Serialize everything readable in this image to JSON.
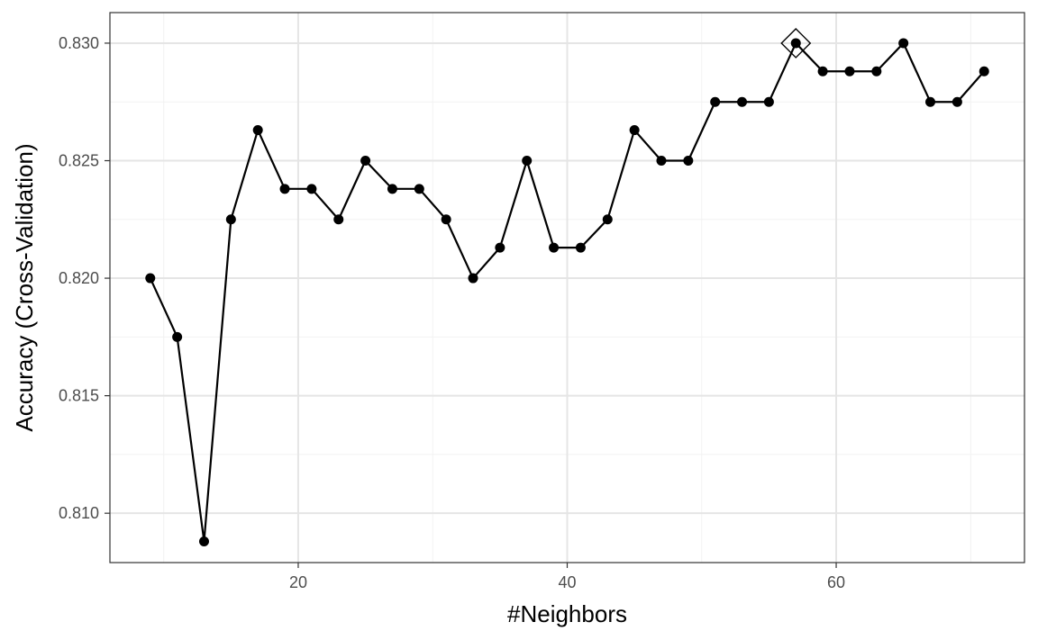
{
  "chart_data": {
    "type": "line",
    "title": "",
    "xlabel": "#Neighbors",
    "ylabel": "Accuracy (Cross-Validation)",
    "xlim": [
      6,
      74
    ],
    "ylim": [
      0.8079,
      0.8313
    ],
    "x_ticks": [
      {
        "value": 20,
        "label": "20"
      },
      {
        "value": 40,
        "label": "40"
      },
      {
        "value": 60,
        "label": "60"
      }
    ],
    "x_minor_ticks": [
      10,
      30,
      50,
      70
    ],
    "y_ticks": [
      {
        "value": 0.81,
        "label": "0.810"
      },
      {
        "value": 0.815,
        "label": "0.815"
      },
      {
        "value": 0.82,
        "label": "0.820"
      },
      {
        "value": 0.825,
        "label": "0.825"
      },
      {
        "value": 0.83,
        "label": "0.830"
      }
    ],
    "y_minor_ticks": [
      0.8125,
      0.8175,
      0.8225,
      0.8275
    ],
    "grid": true,
    "series": [
      {
        "x": [
          9,
          11,
          13,
          15,
          17,
          19,
          21,
          23,
          25,
          27,
          29,
          31,
          33,
          35,
          37,
          39,
          41,
          43,
          45,
          47,
          49,
          51,
          53,
          55,
          57,
          59,
          61,
          63,
          65,
          67,
          69,
          71
        ],
        "y": [
          0.82,
          0.8175,
          0.8088,
          0.8225,
          0.8263,
          0.8238,
          0.8238,
          0.8225,
          0.825,
          0.8238,
          0.8238,
          0.8225,
          0.82,
          0.8213,
          0.825,
          0.8213,
          0.8213,
          0.8225,
          0.8263,
          0.825,
          0.825,
          0.8275,
          0.8275,
          0.8275,
          0.83,
          0.8288,
          0.8288,
          0.8288,
          0.83,
          0.8275,
          0.8275,
          0.8288
        ]
      }
    ],
    "highlight": {
      "x": 57,
      "y": 0.83,
      "marker": "diamond"
    },
    "colors": {
      "line": "#000000",
      "point": "#000000",
      "grid_major": "#e5e5e5",
      "grid_minor": "#f2f2f2",
      "panel_border": "#333333",
      "tick_label": "#4d4d4d"
    }
  }
}
